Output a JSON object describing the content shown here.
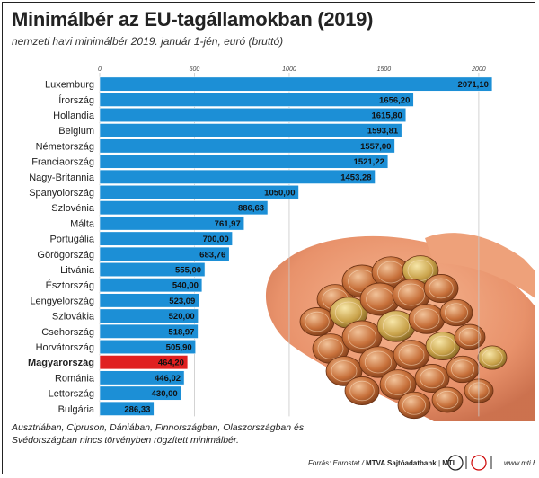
{
  "title": "Minimálbér az EU-tagállamokban (2019)",
  "subtitle": "nemzeti havi minimálbér 2019. január 1-jén, euró (bruttó)",
  "footnote": "Ausztriában, Cipruson, Dániában, Finnországban, Olaszországban és Svédországban nincs törvényben rögzített minimálbér.",
  "source": {
    "label": "Forrás: Eurostat / ",
    "credit": "MTVA Sajtóadatbank",
    "separator": " | ",
    "agency": "MTI"
  },
  "site": "www.mti.hu",
  "colors": {
    "bar": "#1c8fd6",
    "highlight": "#e02020",
    "text": "#222222",
    "grid": "#c8c8c8"
  },
  "chart_data": {
    "type": "bar",
    "orientation": "horizontal",
    "categories": [
      "Luxemburg",
      "Írország",
      "Hollandia",
      "Belgium",
      "Németország",
      "Franciaország",
      "Nagy-Britannia",
      "Spanyolország",
      "Szlovénia",
      "Málta",
      "Portugália",
      "Görögország",
      "Litvánia",
      "Észtország",
      "Lengyelország",
      "Szlovákia",
      "Csehország",
      "Horvátország",
      "Magyarország",
      "Románia",
      "Lettország",
      "Bulgária"
    ],
    "values": [
      2071.1,
      1656.2,
      1615.8,
      1593.81,
      1557.0,
      1521.22,
      1453.28,
      1050.0,
      886.63,
      761.97,
      700.0,
      683.76,
      555.0,
      540.0,
      523.09,
      520.0,
      518.97,
      505.9,
      464.2,
      446.02,
      430.0,
      286.33
    ],
    "value_labels": [
      "2071,10",
      "1656,20",
      "1615,80",
      "1593,81",
      "1557,00",
      "1521,22",
      "1453,28",
      "1050,00",
      "886,63",
      "761,97",
      "700,00",
      "683,76",
      "555,00",
      "540,00",
      "523,09",
      "520,00",
      "518,97",
      "505,90",
      "464,20",
      "446,02",
      "430,00",
      "286,33"
    ],
    "highlight": "Magyarország",
    "xticks": [
      0,
      500,
      1000,
      1500,
      2000
    ],
    "xlim": [
      0,
      2100
    ],
    "grid": true,
    "legend": "none"
  }
}
